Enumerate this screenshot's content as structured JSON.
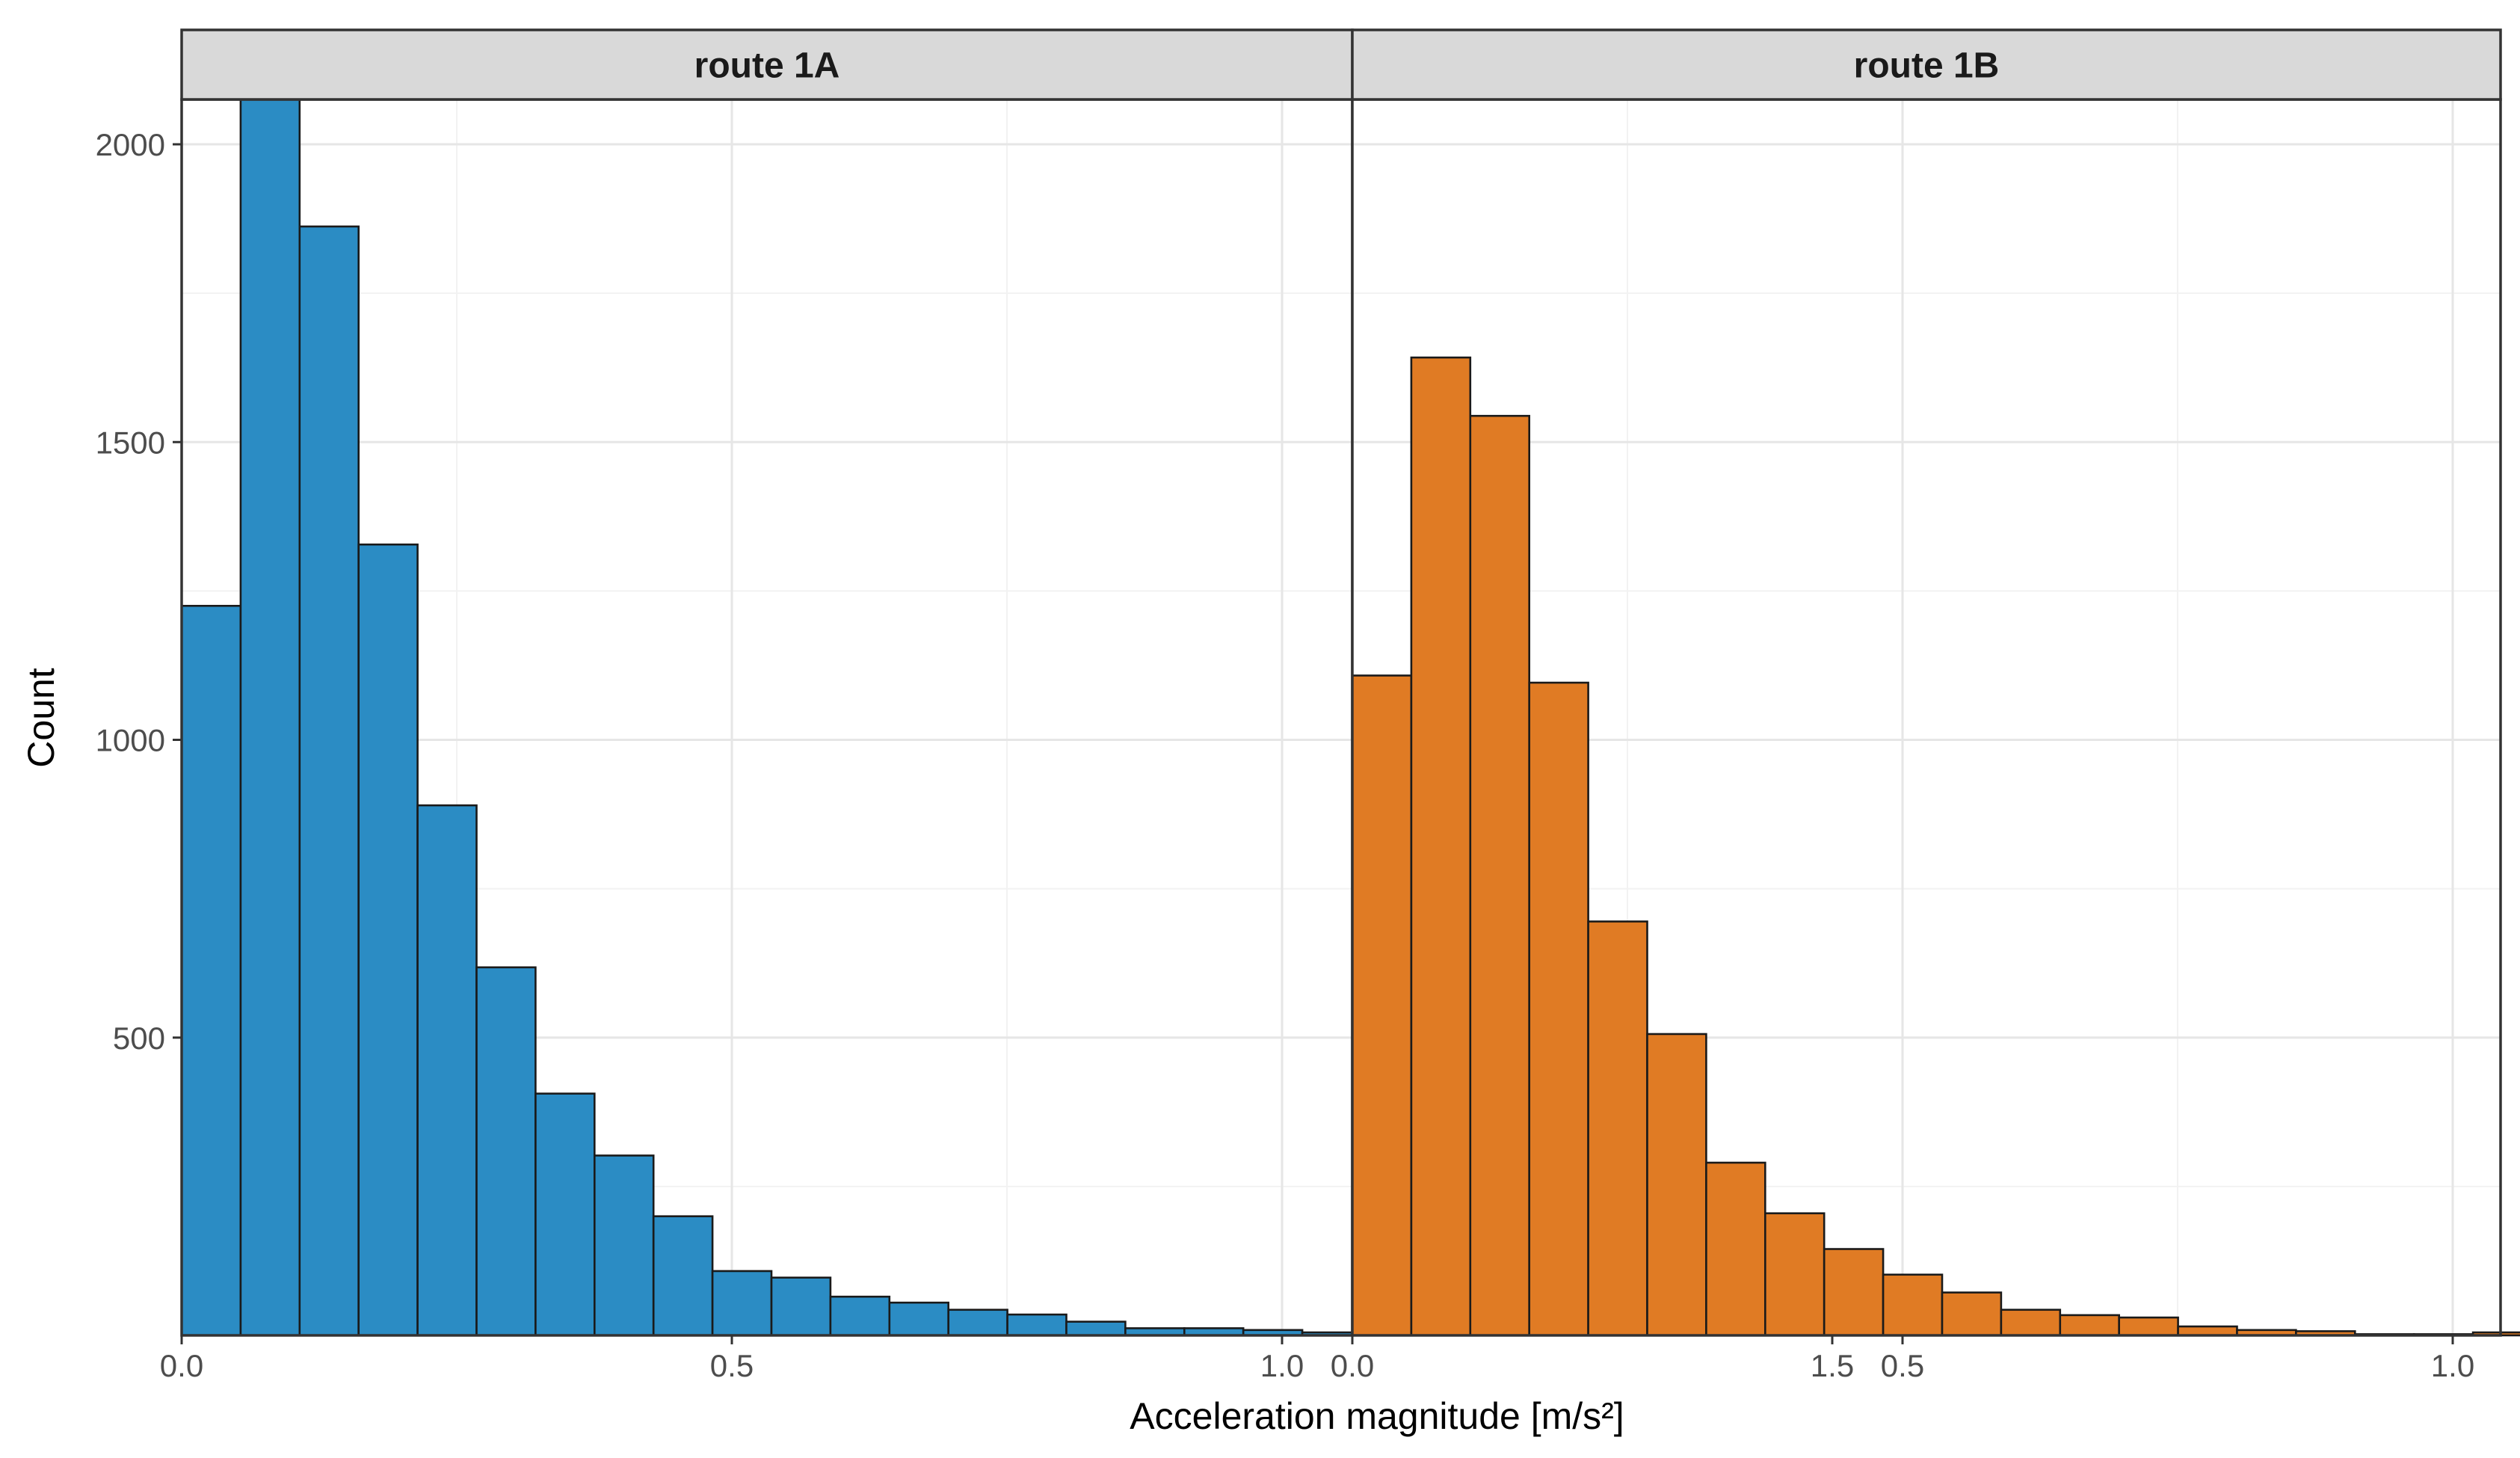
{
  "chart_data": {
    "type": "bar",
    "subtype": "faceted-histogram",
    "xlabel": "Acceleration magnitude [m/s²]",
    "ylabel": "Count",
    "xlim": [
      0,
      1.55
    ],
    "ylim": [
      0,
      2080
    ],
    "bin_width": 0.0536,
    "x_ticks": [
      0.0,
      0.5,
      1.0,
      1.5
    ],
    "x_tick_labels": [
      "0.0",
      "0.5",
      "1.0",
      "1.5"
    ],
    "y_ticks": [
      500,
      1000,
      1500,
      2000
    ],
    "y_tick_labels": [
      "500",
      "1000",
      "1500",
      "2000"
    ],
    "grid": true,
    "legend": "none",
    "panels": [
      {
        "title": "route 1A",
        "color": "#2b8cc4",
        "bin_starts": [
          0.0,
          0.0536,
          0.1072,
          0.1608,
          0.2144,
          0.268,
          0.3216,
          0.3752,
          0.4288,
          0.4824,
          0.536,
          0.5896,
          0.6432,
          0.6968,
          0.7504,
          0.804,
          0.8576,
          0.9112,
          0.9648,
          1.0184,
          1.072,
          1.1256,
          1.1792,
          1.2328,
          1.2864,
          1.34,
          1.3936,
          1.4472
        ],
        "counts": [
          1225,
          2080,
          1862,
          1328,
          890,
          618,
          406,
          302,
          200,
          108,
          97,
          65,
          55,
          43,
          35,
          23,
          12,
          12,
          9,
          5,
          7,
          2,
          5,
          2,
          2,
          1,
          1,
          1
        ]
      },
      {
        "title": "route 1B",
        "color": "#e07b24",
        "bin_starts": [
          0.0,
          0.0536,
          0.1072,
          0.1608,
          0.2144,
          0.268,
          0.3216,
          0.3752,
          0.4288,
          0.4824,
          0.536,
          0.5896,
          0.6432,
          0.6968,
          0.7504,
          0.804,
          0.8576,
          0.9112,
          0.9648,
          1.0184,
          1.072,
          1.1256,
          1.1792,
          1.2328,
          1.2864,
          1.34,
          1.3936,
          1.4472
        ],
        "counts": [
          1108,
          1642,
          1544,
          1096,
          695,
          506,
          290,
          205,
          145,
          102,
          72,
          43,
          34,
          30,
          15,
          9,
          7,
          2,
          2,
          5,
          1,
          3,
          3,
          2,
          1,
          2,
          1,
          1
        ]
      }
    ]
  }
}
